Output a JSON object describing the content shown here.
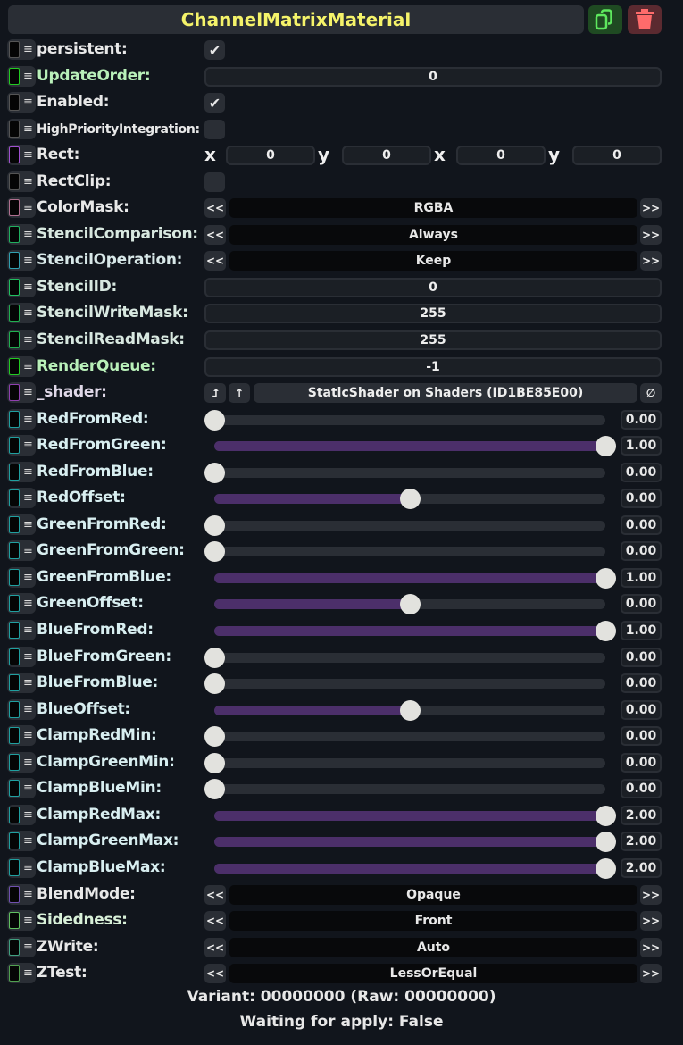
{
  "header": {
    "title": "ChannelMatrixMaterial",
    "duplicate_icon": "duplicate-icon",
    "delete_icon": "trash-icon"
  },
  "colors": {
    "title": "#f5f36a",
    "slider_fill": "#4c2f6a",
    "duplicate_bg": "#1f4a22",
    "delete_bg": "#5b2a30"
  },
  "rows": [
    {
      "label": "persistent:",
      "type": "check",
      "checked": true,
      "ind": "#555555",
      "lc": "#e8e8e8"
    },
    {
      "label": "UpdateOrder:",
      "type": "field",
      "value": "0",
      "ind": "#22cc22",
      "lc": "#b9f0b9"
    },
    {
      "label": "Enabled:",
      "type": "check",
      "checked": true,
      "ind": "#555555",
      "lc": "#e8e8e8"
    },
    {
      "label": "HighPriorityIntegration:",
      "type": "check",
      "checked": false,
      "ind": "#555555",
      "lc": "#e8e8e8",
      "small": true
    },
    {
      "label": "Rect:",
      "type": "rect",
      "values": [
        {
          "axis": "x",
          "value": "0"
        },
        {
          "axis": "y",
          "value": "0"
        },
        {
          "axis": "x",
          "value": "0"
        },
        {
          "axis": "y",
          "value": "0"
        }
      ],
      "ind": "#a050d0",
      "lc": "#e8e8e8"
    },
    {
      "label": "RectClip:",
      "type": "check",
      "checked": false,
      "ind": "#555555",
      "lc": "#e8e8e8"
    },
    {
      "label": "ColorMask:",
      "type": "enum",
      "value": "RGBA",
      "ind": "#b07090",
      "lc": "#e8e8e8"
    },
    {
      "label": "StencilComparison:",
      "type": "enum",
      "value": "Always",
      "ind": "#20b060",
      "lc": "#d8e8e0"
    },
    {
      "label": "StencilOperation:",
      "type": "enum",
      "value": "Keep",
      "ind": "#30a0b0",
      "lc": "#d8e8e8"
    },
    {
      "label": "StencilID:",
      "type": "field",
      "value": "0",
      "ind": "#20c060",
      "lc": "#d8e8e0"
    },
    {
      "label": "StencilWriteMask:",
      "type": "field",
      "value": "255",
      "ind": "#20b050",
      "lc": "#d8e8e0"
    },
    {
      "label": "StencilReadMask:",
      "type": "field",
      "value": "255",
      "ind": "#20b050",
      "lc": "#d8e8e0"
    },
    {
      "label": "RenderQueue:",
      "type": "field",
      "value": "-1",
      "ind": "#22cc22",
      "lc": "#b9f0b9"
    },
    {
      "label": "_shader:",
      "type": "ref",
      "value": "StaticShader on Shaders (ID1BE85E00)",
      "ind": "#9040b0",
      "lc": "#e0d8e8",
      "btn1": "⮥",
      "btn2": "↑",
      "clear": "∅"
    },
    {
      "label": "RedFromRed:",
      "type": "slider",
      "value": "0.00",
      "level": 0,
      "ind": "#20a0a0",
      "lc": "#d8eef0"
    },
    {
      "label": "RedFromGreen:",
      "type": "slider",
      "value": "1.00",
      "level": 1,
      "ind": "#20a0a0",
      "lc": "#d8eef0"
    },
    {
      "label": "RedFromBlue:",
      "type": "slider",
      "value": "0.00",
      "level": 0,
      "ind": "#20a0a0",
      "lc": "#d8eef0"
    },
    {
      "label": "RedOffset:",
      "type": "slider",
      "value": "0.00",
      "level": 0.5,
      "ind": "#20a0a0",
      "lc": "#d8eef0"
    },
    {
      "label": "GreenFromRed:",
      "type": "slider",
      "value": "0.00",
      "level": 0,
      "ind": "#20a0a0",
      "lc": "#d8eef0"
    },
    {
      "label": "GreenFromGreen:",
      "type": "slider",
      "value": "0.00",
      "level": 0,
      "ind": "#20a0a0",
      "lc": "#d8eef0"
    },
    {
      "label": "GreenFromBlue:",
      "type": "slider",
      "value": "1.00",
      "level": 1,
      "ind": "#20a0a0",
      "lc": "#d8eef0"
    },
    {
      "label": "GreenOffset:",
      "type": "slider",
      "value": "0.00",
      "level": 0.5,
      "ind": "#20a0a0",
      "lc": "#d8eef0"
    },
    {
      "label": "BlueFromRed:",
      "type": "slider",
      "value": "1.00",
      "level": 1,
      "ind": "#20a0a0",
      "lc": "#d8eef0"
    },
    {
      "label": "BlueFromGreen:",
      "type": "slider",
      "value": "0.00",
      "level": 0,
      "ind": "#20a0a0",
      "lc": "#d8eef0"
    },
    {
      "label": "BlueFromBlue:",
      "type": "slider",
      "value": "0.00",
      "level": 0,
      "ind": "#20a0a0",
      "lc": "#d8eef0"
    },
    {
      "label": "BlueOffset:",
      "type": "slider",
      "value": "0.00",
      "level": 0.5,
      "ind": "#20a0a0",
      "lc": "#d8eef0"
    },
    {
      "label": "ClampRedMin:",
      "type": "slider",
      "value": "0.00",
      "level": 0,
      "ind": "#20a0a0",
      "lc": "#d8eef0"
    },
    {
      "label": "ClampGreenMin:",
      "type": "slider",
      "value": "0.00",
      "level": 0,
      "ind": "#20a0a0",
      "lc": "#d8eef0"
    },
    {
      "label": "ClampBlueMin:",
      "type": "slider",
      "value": "0.00",
      "level": 0,
      "ind": "#20a0a0",
      "lc": "#d8eef0"
    },
    {
      "label": "ClampRedMax:",
      "type": "slider",
      "value": "2.00",
      "level": 1,
      "ind": "#20a0a0",
      "lc": "#d8eef0"
    },
    {
      "label": "ClampGreenMax:",
      "type": "slider",
      "value": "2.00",
      "level": 1,
      "ind": "#20a0a0",
      "lc": "#d8eef0"
    },
    {
      "label": "ClampBlueMax:",
      "type": "slider",
      "value": "2.00",
      "level": 1,
      "ind": "#20a0a0",
      "lc": "#d8eef0"
    },
    {
      "label": "BlendMode:",
      "type": "enum",
      "value": "Opaque",
      "ind": "#7050b0",
      "lc": "#e8e8e8"
    },
    {
      "label": "Sidedness:",
      "type": "enum",
      "value": "Front",
      "ind": "#60c060",
      "lc": "#d8f0d8"
    },
    {
      "label": "ZWrite:",
      "type": "enum",
      "value": "Auto",
      "ind": "#40a080",
      "lc": "#e8e8e8"
    },
    {
      "label": "ZTest:",
      "type": "enum",
      "value": "LessOrEqual",
      "ind": "#50a050",
      "lc": "#e8e8e8"
    }
  ],
  "enum_prev": "<<",
  "enum_next": ">>",
  "footer": {
    "variant": "Variant: 00000000 (Raw: 00000000)",
    "waiting": "Waiting for apply: False"
  }
}
